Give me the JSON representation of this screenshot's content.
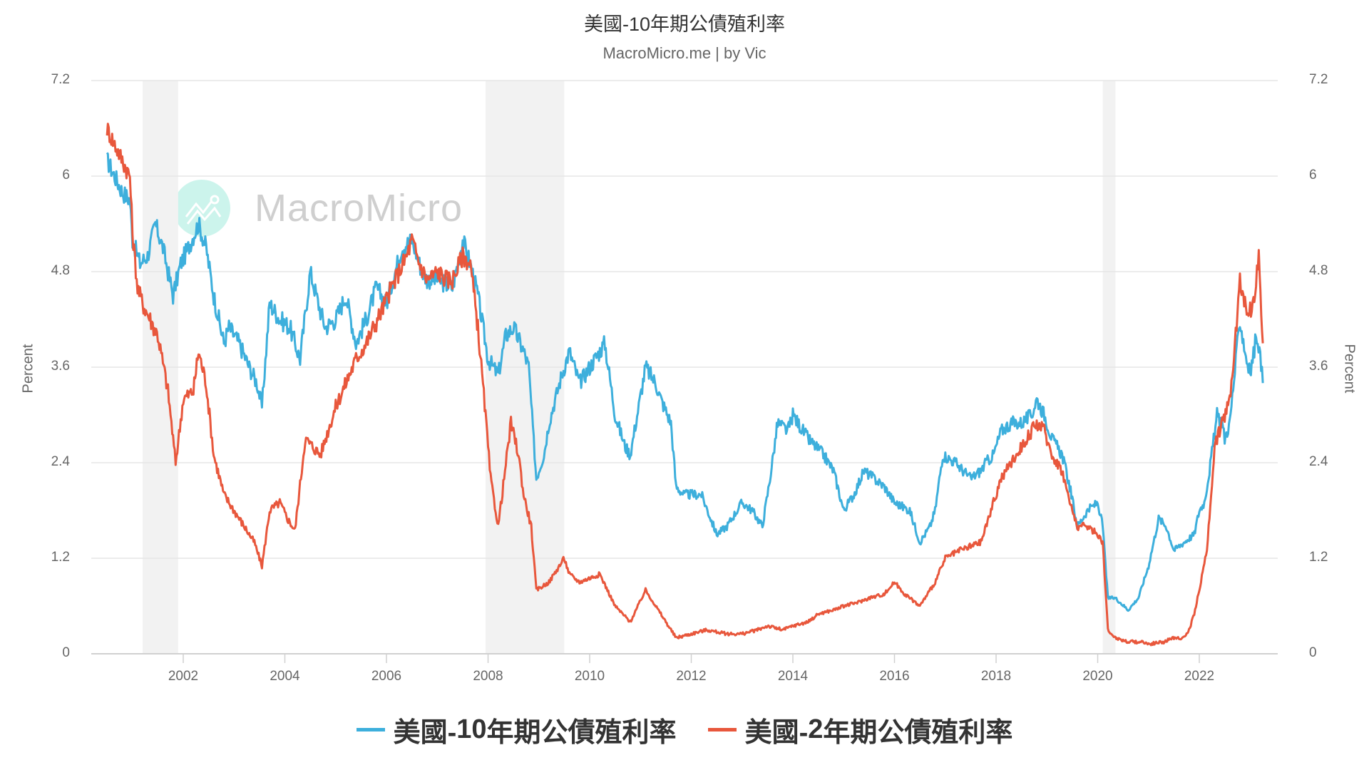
{
  "header": {
    "title": "美國-10年期公債殖利率",
    "subtitle": "MacroMicro.me | by Vic"
  },
  "watermark": {
    "text": "MacroMicro",
    "icon": "chart-line-logo-icon"
  },
  "axes": {
    "y_left": {
      "label": "Percent",
      "ticks": [
        "0",
        "1.2",
        "2.4",
        "3.6",
        "4.8",
        "6",
        "7.2"
      ]
    },
    "y_right": {
      "label": "Percent",
      "ticks": [
        "0",
        "1.2",
        "2.4",
        "3.6",
        "4.8",
        "6",
        "7.2"
      ]
    },
    "x": {
      "ticks": [
        "2002",
        "2004",
        "2006",
        "2008",
        "2010",
        "2012",
        "2014",
        "2016",
        "2018",
        "2020",
        "2022"
      ]
    }
  },
  "legend": [
    {
      "label_prefix": "美國-",
      "label_num": "10",
      "label_suffix": "年期公債殖利率",
      "color": "#3dafdc"
    },
    {
      "label_prefix": "美國-",
      "label_num": "2",
      "label_suffix": "年期公債殖利率",
      "color": "#e8573c"
    }
  ],
  "colors": {
    "series_10y": "#3dafdc",
    "series_2y": "#e8573c",
    "recession_band": "#f2f2f2",
    "grid": "#e6e6e6"
  },
  "chart_data": {
    "type": "line",
    "title": "美國-10年期公債殖利率",
    "subtitle": "MacroMicro.me | by Vic",
    "xlabel": "",
    "ylabel": "Percent",
    "ylim": [
      0,
      7.2
    ],
    "xlim": [
      2000.2,
      2023.5
    ],
    "y_ticks": [
      0,
      1.2,
      2.4,
      3.6,
      4.8,
      6,
      7.2
    ],
    "x_ticks": [
      2002,
      2004,
      2006,
      2008,
      2010,
      2012,
      2014,
      2016,
      2018,
      2020,
      2022
    ],
    "grid": true,
    "legend_position": "bottom",
    "recession_bands": [
      [
        2001.2,
        2001.9
      ],
      [
        2007.95,
        2009.5
      ],
      [
        2020.1,
        2020.35
      ]
    ],
    "series": [
      {
        "name": "美國-10年期公債殖利率",
        "color": "#3dafdc",
        "x": [
          2000.5,
          2000.65,
          2000.8,
          2000.95,
          2001.0,
          2001.15,
          2001.3,
          2001.45,
          2001.6,
          2001.8,
          2001.95,
          2002.1,
          2002.3,
          2002.45,
          2002.6,
          2002.8,
          2002.9,
          2003.1,
          2003.3,
          2003.45,
          2003.55,
          2003.7,
          2003.9,
          2004.1,
          2004.3,
          2004.5,
          2004.7,
          2004.8,
          2005.0,
          2005.2,
          2005.4,
          2005.6,
          2005.8,
          2006.0,
          2006.3,
          2006.5,
          2006.7,
          2006.8,
          2007.0,
          2007.3,
          2007.5,
          2007.65,
          2007.8,
          2008.0,
          2008.2,
          2008.35,
          2008.5,
          2008.7,
          2008.8,
          2008.95,
          2009.1,
          2009.2,
          2009.45,
          2009.6,
          2009.8,
          2010.0,
          2010.3,
          2010.5,
          2010.7,
          2010.8,
          2011.1,
          2011.3,
          2011.4,
          2011.6,
          2011.7,
          2011.85,
          2012.0,
          2012.2,
          2012.5,
          2012.7,
          2012.8,
          2013.0,
          2013.2,
          2013.4,
          2013.55,
          2013.7,
          2013.9,
          2014.0,
          2014.3,
          2014.6,
          2014.8,
          2015.0,
          2015.2,
          2015.4,
          2015.6,
          2015.8,
          2016.0,
          2016.3,
          2016.5,
          2016.7,
          2016.8,
          2016.95,
          2017.2,
          2017.5,
          2017.7,
          2017.8,
          2017.95,
          2018.1,
          2018.3,
          2018.5,
          2018.7,
          2018.8,
          2018.95,
          2019.1,
          2019.3,
          2019.45,
          2019.6,
          2019.7,
          2019.8,
          2020.0,
          2020.1,
          2020.2,
          2020.35,
          2020.6,
          2020.8,
          2020.9,
          2021.0,
          2021.2,
          2021.35,
          2021.5,
          2021.7,
          2021.9,
          2022.0,
          2022.1,
          2022.2,
          2022.35,
          2022.45,
          2022.5,
          2022.6,
          2022.8,
          2022.9,
          2023.0,
          2023.1,
          2023.15,
          2023.2,
          2023.25
        ],
        "values": [
          6.2,
          6.0,
          5.8,
          5.7,
          5.2,
          4.9,
          5.0,
          5.4,
          5.1,
          4.5,
          4.9,
          5.1,
          5.4,
          5.1,
          4.5,
          3.9,
          4.1,
          3.9,
          3.6,
          3.4,
          3.1,
          4.4,
          4.2,
          4.1,
          3.7,
          4.8,
          4.3,
          4.1,
          4.2,
          4.5,
          3.9,
          4.2,
          4.6,
          4.4,
          5.1,
          5.2,
          4.8,
          4.7,
          4.7,
          4.6,
          5.2,
          4.9,
          4.5,
          3.7,
          3.5,
          4.0,
          4.1,
          3.8,
          3.6,
          2.2,
          2.5,
          2.9,
          3.5,
          3.8,
          3.4,
          3.6,
          3.9,
          3.0,
          2.6,
          2.5,
          3.6,
          3.4,
          3.2,
          2.9,
          2.1,
          2.0,
          2.0,
          2.0,
          1.5,
          1.6,
          1.7,
          1.9,
          1.8,
          1.6,
          2.2,
          2.9,
          2.8,
          3.0,
          2.7,
          2.5,
          2.3,
          1.8,
          2.0,
          2.3,
          2.2,
          2.1,
          1.9,
          1.8,
          1.4,
          1.6,
          1.8,
          2.5,
          2.4,
          2.2,
          2.3,
          2.4,
          2.5,
          2.8,
          2.9,
          2.9,
          3.0,
          3.2,
          3.0,
          2.7,
          2.5,
          2.1,
          1.6,
          1.7,
          1.8,
          1.9,
          1.6,
          0.7,
          0.7,
          0.55,
          0.7,
          0.9,
          1.1,
          1.7,
          1.6,
          1.3,
          1.4,
          1.5,
          1.8,
          1.9,
          2.3,
          3.0,
          2.9,
          2.7,
          2.9,
          4.2,
          3.8,
          3.5,
          3.9,
          4.0,
          3.7,
          3.4
        ]
      },
      {
        "name": "美國-2年期公債殖利率",
        "color": "#e8573c",
        "x": [
          2000.5,
          2000.65,
          2000.8,
          2000.95,
          2001.0,
          2001.1,
          2001.2,
          2001.35,
          2001.5,
          2001.7,
          2001.85,
          2002.0,
          2002.2,
          2002.3,
          2002.45,
          2002.6,
          2002.8,
          2003.0,
          2003.2,
          2003.4,
          2003.55,
          2003.7,
          2003.9,
          2004.05,
          2004.2,
          2004.4,
          2004.55,
          2004.7,
          2004.85,
          2005.0,
          2005.2,
          2005.4,
          2005.6,
          2005.9,
          2006.1,
          2006.4,
          2006.5,
          2006.65,
          2006.8,
          2007.0,
          2007.2,
          2007.3,
          2007.5,
          2007.65,
          2007.8,
          2007.95,
          2008.05,
          2008.2,
          2008.45,
          2008.6,
          2008.7,
          2008.85,
          2008.95,
          2009.2,
          2009.5,
          2009.6,
          2009.8,
          2010.0,
          2010.2,
          2010.5,
          2010.8,
          2011.1,
          2011.4,
          2011.7,
          2012.0,
          2012.3,
          2012.7,
          2013.0,
          2013.3,
          2013.5,
          2013.8,
          2014.0,
          2014.3,
          2014.5,
          2014.8,
          2015.0,
          2015.3,
          2015.5,
          2015.8,
          2016.0,
          2016.2,
          2016.5,
          2016.8,
          2017.0,
          2017.3,
          2017.5,
          2017.7,
          2017.9,
          2018.1,
          2018.3,
          2018.6,
          2018.8,
          2018.95,
          2019.1,
          2019.3,
          2019.45,
          2019.6,
          2019.8,
          2020.0,
          2020.1,
          2020.2,
          2020.35,
          2020.6,
          2020.9,
          2021.0,
          2021.3,
          2021.5,
          2021.7,
          2021.8,
          2021.9,
          2022.0,
          2022.15,
          2022.3,
          2022.4,
          2022.5,
          2022.6,
          2022.7,
          2022.8,
          2022.9,
          2023.0,
          2023.1,
          2023.17,
          2023.22,
          2023.25
        ],
        "values": [
          6.6,
          6.4,
          6.2,
          6.0,
          5.3,
          4.6,
          4.4,
          4.2,
          4.0,
          3.3,
          2.4,
          3.2,
          3.3,
          3.8,
          3.4,
          2.5,
          2.0,
          1.8,
          1.6,
          1.4,
          1.1,
          1.8,
          1.9,
          1.7,
          1.55,
          2.7,
          2.6,
          2.5,
          2.8,
          3.1,
          3.4,
          3.7,
          3.9,
          4.3,
          4.6,
          5.0,
          5.2,
          4.9,
          4.7,
          4.8,
          4.7,
          4.7,
          5.0,
          4.9,
          4.1,
          3.0,
          2.2,
          1.6,
          2.9,
          2.5,
          2.0,
          1.6,
          0.8,
          0.9,
          1.2,
          1.0,
          0.9,
          0.95,
          1.0,
          0.6,
          0.4,
          0.8,
          0.5,
          0.2,
          0.25,
          0.3,
          0.25,
          0.25,
          0.3,
          0.35,
          0.3,
          0.35,
          0.4,
          0.5,
          0.55,
          0.6,
          0.65,
          0.7,
          0.75,
          0.9,
          0.75,
          0.6,
          0.9,
          1.2,
          1.3,
          1.35,
          1.4,
          1.8,
          2.2,
          2.4,
          2.7,
          2.9,
          2.8,
          2.5,
          2.3,
          1.9,
          1.6,
          1.6,
          1.5,
          1.4,
          0.3,
          0.2,
          0.15,
          0.15,
          0.12,
          0.15,
          0.2,
          0.2,
          0.3,
          0.5,
          0.8,
          1.3,
          2.6,
          2.8,
          3.0,
          3.2,
          3.9,
          4.7,
          4.4,
          4.3,
          4.5,
          5.05,
          4.2,
          3.9
        ]
      }
    ]
  }
}
